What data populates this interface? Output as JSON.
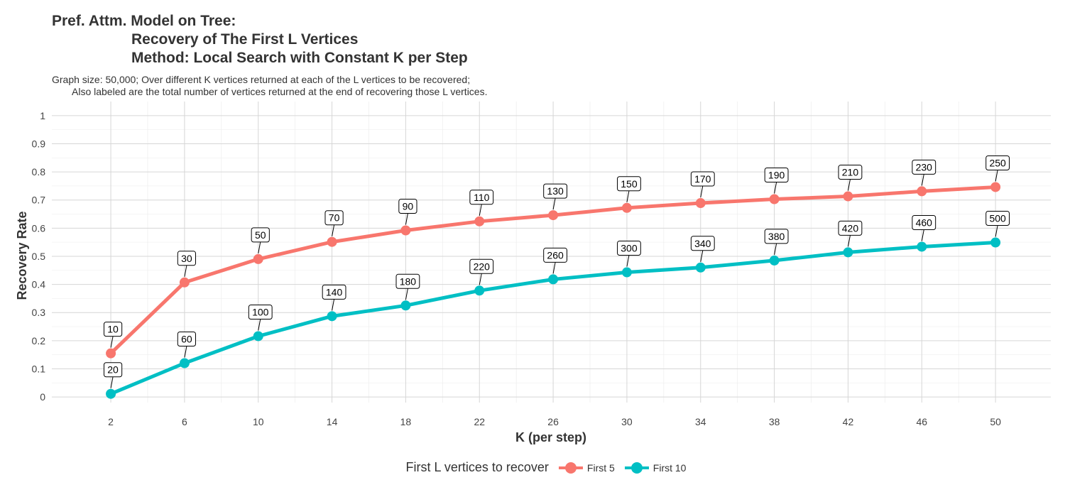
{
  "chart_data": {
    "type": "line",
    "title_lines": [
      "Pref. Attm. Model on Tree:",
      "Recovery of The First L Vertices",
      "Method: Local Search with Constant K per Step"
    ],
    "subtitle_lines": [
      "Graph size: 50,000; Over different K vertices returned at each of the L vertices to be recovered;",
      "Also labeled are the total number of vertices returned at the end of recovering those L vertices."
    ],
    "xlabel": "K (per step)",
    "ylabel": "Recovery Rate",
    "x": [
      2,
      6,
      10,
      14,
      18,
      22,
      26,
      30,
      34,
      38,
      42,
      46,
      50
    ],
    "x_ticks": [
      "2",
      "6",
      "10",
      "14",
      "18",
      "22",
      "26",
      "30",
      "34",
      "38",
      "42",
      "46",
      "50"
    ],
    "y_ticks": [
      "0",
      "0.1",
      "0.2",
      "0.3",
      "0.4",
      "0.5",
      "0.6",
      "0.7",
      "0.8",
      "0.9",
      "1"
    ],
    "xlim": [
      -1.2,
      53
    ],
    "ylim": [
      -0.02,
      1.05
    ],
    "grid": true,
    "legend": {
      "title": "First L vertices to recover",
      "position": "bottom"
    },
    "series": [
      {
        "name": "First 5",
        "color": "#F8766D",
        "values": [
          0.155,
          0.407,
          0.49,
          0.551,
          0.592,
          0.624,
          0.646,
          0.672,
          0.689,
          0.703,
          0.713,
          0.731,
          0.746
        ],
        "labels": [
          "10",
          "30",
          "50",
          "70",
          "90",
          "110",
          "130",
          "150",
          "170",
          "190",
          "210",
          "230",
          "250"
        ]
      },
      {
        "name": "First 10",
        "color": "#00BFC4",
        "values": [
          0.011,
          0.12,
          0.216,
          0.287,
          0.325,
          0.378,
          0.418,
          0.443,
          0.46,
          0.485,
          0.514,
          0.534,
          0.549
        ],
        "labels": [
          "20",
          "60",
          "100",
          "140",
          "180",
          "220",
          "260",
          "300",
          "340",
          "380",
          "420",
          "460",
          "500"
        ]
      }
    ]
  }
}
